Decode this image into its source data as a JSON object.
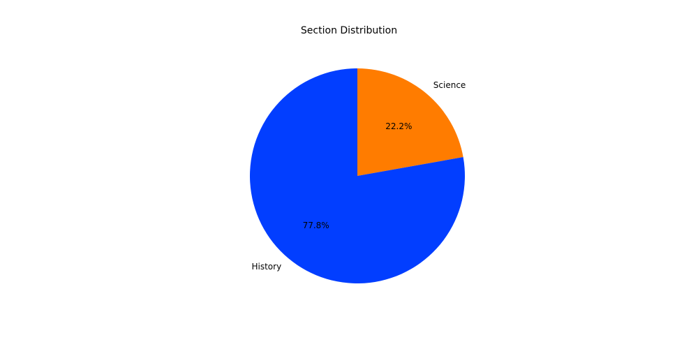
{
  "chart_data": {
    "type": "pie",
    "title": "Section Distribution",
    "slices": [
      {
        "label": "Science",
        "value": 22.2,
        "pct_label": "22.2%",
        "color": "#ff7c00"
      },
      {
        "label": "History",
        "value": 77.8,
        "pct_label": "77.8%",
        "color": "#023eff"
      }
    ],
    "start_angle_deg": 90,
    "direction": "clockwise",
    "legend": "none"
  }
}
